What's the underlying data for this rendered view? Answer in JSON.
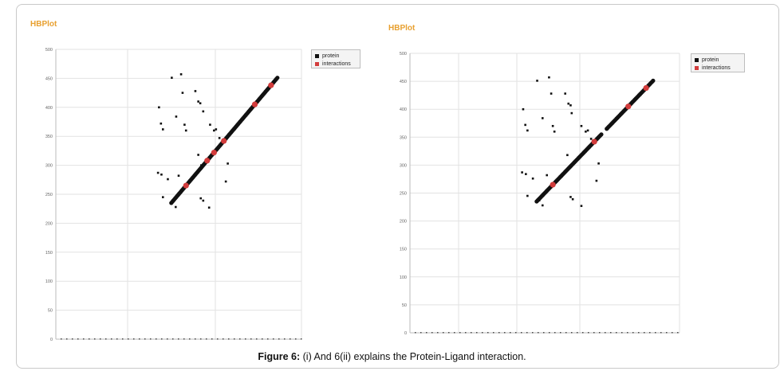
{
  "figure": {
    "caption_label": "Figure 6:",
    "caption_text": " (i) And 6(ii) explains the Protein-Ligand interaction."
  },
  "panels": [
    {
      "title": "HBPlot",
      "legend": [
        {
          "label": "protein",
          "color": "#111111"
        },
        {
          "label": "interactions",
          "color": "#d23c3c"
        }
      ]
    },
    {
      "title": "HBPlot",
      "legend": [
        {
          "label": "protein",
          "color": "#111111"
        },
        {
          "label": "interactions",
          "color": "#d23c3c"
        }
      ]
    }
  ],
  "chart_data": [
    {
      "type": "scatter",
      "title": "HBPlot",
      "ylim": [
        0,
        500
      ],
      "yticks": [
        0,
        50,
        100,
        150,
        200,
        250,
        300,
        350,
        400,
        450,
        500
      ],
      "xlim": [
        0,
        500
      ],
      "grid": true,
      "legend_position": "top-right",
      "series": [
        {
          "name": "protein",
          "color": "#111111",
          "diagonal_range": [
            235,
            452
          ],
          "points": [
            [
              210,
              400
            ],
            [
              214,
              372
            ],
            [
              218,
              362
            ],
            [
              236,
              451
            ],
            [
              255,
              457
            ],
            [
              245,
              384
            ],
            [
              258,
              425
            ],
            [
              262,
              370
            ],
            [
              265,
              360
            ],
            [
              284,
              428
            ],
            [
              290,
              410
            ],
            [
              294,
              407
            ],
            [
              300,
              393
            ],
            [
              314,
              370
            ],
            [
              322,
              360
            ],
            [
              326,
              362
            ],
            [
              333,
              347
            ],
            [
              208,
              287
            ],
            [
              215,
              284
            ],
            [
              228,
              276
            ],
            [
              250,
              282
            ],
            [
              290,
              318
            ],
            [
              296,
              300
            ],
            [
              350,
              303
            ],
            [
              346,
              272
            ],
            [
              218,
              245
            ],
            [
              238,
              237
            ],
            [
              244,
              228
            ],
            [
              295,
              243
            ],
            [
              300,
              239
            ],
            [
              312,
              227
            ]
          ]
        },
        {
          "name": "interactions",
          "color": "#d23c3c",
          "points": [
            [
              265,
              265
            ],
            [
              308,
              308
            ],
            [
              322,
              322
            ],
            [
              342,
              342
            ],
            [
              405,
              405
            ],
            [
              438,
              438
            ]
          ]
        }
      ]
    },
    {
      "type": "scatter",
      "title": "HBPlot",
      "ylim": [
        0,
        500
      ],
      "yticks": [
        0,
        50,
        100,
        150,
        200,
        250,
        300,
        350,
        400,
        450,
        500
      ],
      "xlim": [
        0,
        500
      ],
      "grid": true,
      "legend_position": "top-right",
      "series": [
        {
          "name": "protein",
          "color": "#111111",
          "diagonal_range": [
            235,
            452
          ],
          "points": [
            [
              210,
              400
            ],
            [
              214,
              372
            ],
            [
              218,
              362
            ],
            [
              236,
              451
            ],
            [
              258,
              457
            ],
            [
              246,
              384
            ],
            [
              262,
              428
            ],
            [
              265,
              370
            ],
            [
              268,
              360
            ],
            [
              288,
              428
            ],
            [
              294,
              410
            ],
            [
              298,
              407
            ],
            [
              300,
              393
            ],
            [
              318,
              370
            ],
            [
              326,
              360
            ],
            [
              330,
              362
            ],
            [
              336,
              347
            ],
            [
              208,
              287
            ],
            [
              215,
              284
            ],
            [
              228,
              276
            ],
            [
              254,
              282
            ],
            [
              292,
              318
            ],
            [
              300,
              300
            ],
            [
              350,
              303
            ],
            [
              346,
              272
            ],
            [
              218,
              245
            ],
            [
              240,
              237
            ],
            [
              246,
              228
            ],
            [
              298,
              243
            ],
            [
              302,
              239
            ],
            [
              318,
              227
            ]
          ]
        },
        {
          "name": "interactions",
          "color": "#d23c3c",
          "points": [
            [
              265,
              265
            ],
            [
              342,
              342
            ],
            [
              405,
              405
            ],
            [
              438,
              438
            ]
          ]
        }
      ]
    }
  ]
}
